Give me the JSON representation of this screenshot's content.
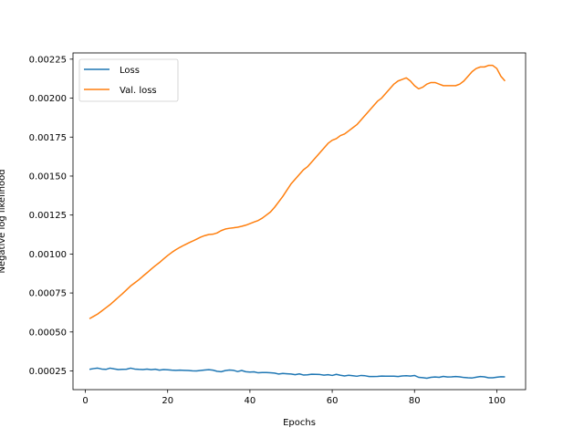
{
  "chart_data": {
    "type": "line",
    "title": "",
    "xlabel": "Epochs",
    "ylabel": "Negative log likelihood",
    "xlim": [
      -3,
      107
    ],
    "ylim": [
      0.00013,
      0.00229
    ],
    "xticks": [
      0,
      20,
      40,
      60,
      80,
      100
    ],
    "xtick_labels": [
      "0",
      "20",
      "40",
      "60",
      "80",
      "100"
    ],
    "yticks": [
      0.00025,
      0.0005,
      0.00075,
      0.001,
      0.00125,
      0.0015,
      0.00175,
      0.002,
      0.00225
    ],
    "ytick_labels": [
      "0.00025",
      "0.00050",
      "0.00075",
      "0.00100",
      "0.00125",
      "0.00150",
      "0.00175",
      "0.00200",
      "0.00225"
    ],
    "grid": false,
    "legend": {
      "position": "top-left"
    },
    "series": [
      {
        "name": "Loss",
        "color": "#1f77b4",
        "x": [
          1,
          2,
          3,
          4,
          5,
          6,
          7,
          8,
          9,
          10,
          11,
          12,
          13,
          14,
          15,
          16,
          17,
          18,
          19,
          20,
          21,
          22,
          23,
          24,
          25,
          26,
          27,
          28,
          29,
          30,
          31,
          32,
          33,
          34,
          35,
          36,
          37,
          38,
          39,
          40,
          41,
          42,
          43,
          44,
          45,
          46,
          47,
          48,
          49,
          50,
          51,
          52,
          53,
          54,
          55,
          56,
          57,
          58,
          59,
          60,
          61,
          62,
          63,
          64,
          65,
          66,
          67,
          68,
          69,
          70,
          71,
          72,
          73,
          74,
          75,
          76,
          77,
          78,
          79,
          80,
          81,
          82,
          83,
          84,
          85,
          86,
          87,
          88,
          89,
          90,
          91,
          92,
          93,
          94,
          95,
          96,
          97,
          98,
          99,
          100,
          101,
          102
        ],
        "y": [
          0.00026,
          0.000265,
          0.000268,
          0.000262,
          0.00026,
          0.000268,
          0.000263,
          0.000259,
          0.00026,
          0.000261,
          0.000268,
          0.000262,
          0.00026,
          0.000259,
          0.000262,
          0.000258,
          0.000261,
          0.000255,
          0.000259,
          0.000257,
          0.000255,
          0.000254,
          0.000255,
          0.000254,
          0.000253,
          0.000251,
          0.00025,
          0.000253,
          0.000256,
          0.000258,
          0.000255,
          0.000248,
          0.000245,
          0.000252,
          0.000256,
          0.000254,
          0.000246,
          0.000253,
          0.000245,
          0.000243,
          0.000244,
          0.000238,
          0.00024,
          0.00024,
          0.000238,
          0.000236,
          0.00023,
          0.000234,
          0.000232,
          0.00023,
          0.000226,
          0.000231,
          0.000224,
          0.000225,
          0.000229,
          0.000228,
          0.000227,
          0.000223,
          0.000226,
          0.000221,
          0.000228,
          0.000222,
          0.000218,
          0.000222,
          0.000219,
          0.000216,
          0.000221,
          0.000219,
          0.000214,
          0.000214,
          0.000215,
          0.000217,
          0.000216,
          0.000216,
          0.000216,
          0.000214,
          0.000218,
          0.000219,
          0.000217,
          0.000221,
          0.000209,
          0.000207,
          0.000203,
          0.000209,
          0.000211,
          0.000209,
          0.000215,
          0.000211,
          0.000212,
          0.000214,
          0.000212,
          0.000208,
          0.000206,
          0.000205,
          0.00021,
          0.000214,
          0.000212,
          0.000206,
          0.000206,
          0.00021,
          0.000213,
          0.000212
        ]
      },
      {
        "name": "Val. loss",
        "color": "#ff7f0e",
        "x": [
          1,
          2,
          3,
          4,
          5,
          6,
          7,
          8,
          9,
          10,
          11,
          12,
          13,
          14,
          15,
          16,
          17,
          18,
          19,
          20,
          21,
          22,
          23,
          24,
          25,
          26,
          27,
          28,
          29,
          30,
          31,
          32,
          33,
          34,
          35,
          36,
          37,
          38,
          39,
          40,
          41,
          42,
          43,
          44,
          45,
          46,
          47,
          48,
          49,
          50,
          51,
          52,
          53,
          54,
          55,
          56,
          57,
          58,
          59,
          60,
          61,
          62,
          63,
          64,
          65,
          66,
          67,
          68,
          69,
          70,
          71,
          72,
          73,
          74,
          75,
          76,
          77,
          78,
          79,
          80,
          81,
          82,
          83,
          84,
          85,
          86,
          87,
          88,
          89,
          90,
          91,
          92,
          93,
          94,
          95,
          96,
          97,
          98,
          99,
          100,
          101,
          102
        ],
        "y": [
          0.000585,
          0.0006,
          0.000615,
          0.000635,
          0.000655,
          0.000675,
          0.000698,
          0.000722,
          0.000745,
          0.00077,
          0.000795,
          0.000815,
          0.000835,
          0.000858,
          0.00088,
          0.000903,
          0.000925,
          0.000945,
          0.000968,
          0.00099,
          0.00101,
          0.001028,
          0.001043,
          0.001057,
          0.00107,
          0.001082,
          0.001095,
          0.001108,
          0.001118,
          0.001125,
          0.001127,
          0.001135,
          0.00115,
          0.00116,
          0.001165,
          0.001168,
          0.001172,
          0.001178,
          0.001185,
          0.001195,
          0.001205,
          0.001215,
          0.00123,
          0.00125,
          0.00127,
          0.0013,
          0.001335,
          0.00137,
          0.00141,
          0.00145,
          0.00148,
          0.00151,
          0.00154,
          0.00156,
          0.00159,
          0.00162,
          0.00165,
          0.00168,
          0.00171,
          0.00173,
          0.00174,
          0.00176,
          0.00177,
          0.00179,
          0.00181,
          0.00183,
          0.00186,
          0.00189,
          0.00192,
          0.00195,
          0.00198,
          0.002,
          0.00203,
          0.00206,
          0.00209,
          0.00211,
          0.00212,
          0.00213,
          0.00211,
          0.00208,
          0.00206,
          0.00207,
          0.00209,
          0.0021,
          0.0021,
          0.00209,
          0.00208,
          0.00208,
          0.00208,
          0.00208,
          0.00209,
          0.00211,
          0.00214,
          0.00217,
          0.00219,
          0.0022,
          0.0022,
          0.00221,
          0.00221,
          0.00219,
          0.00214,
          0.00211
        ]
      }
    ]
  }
}
